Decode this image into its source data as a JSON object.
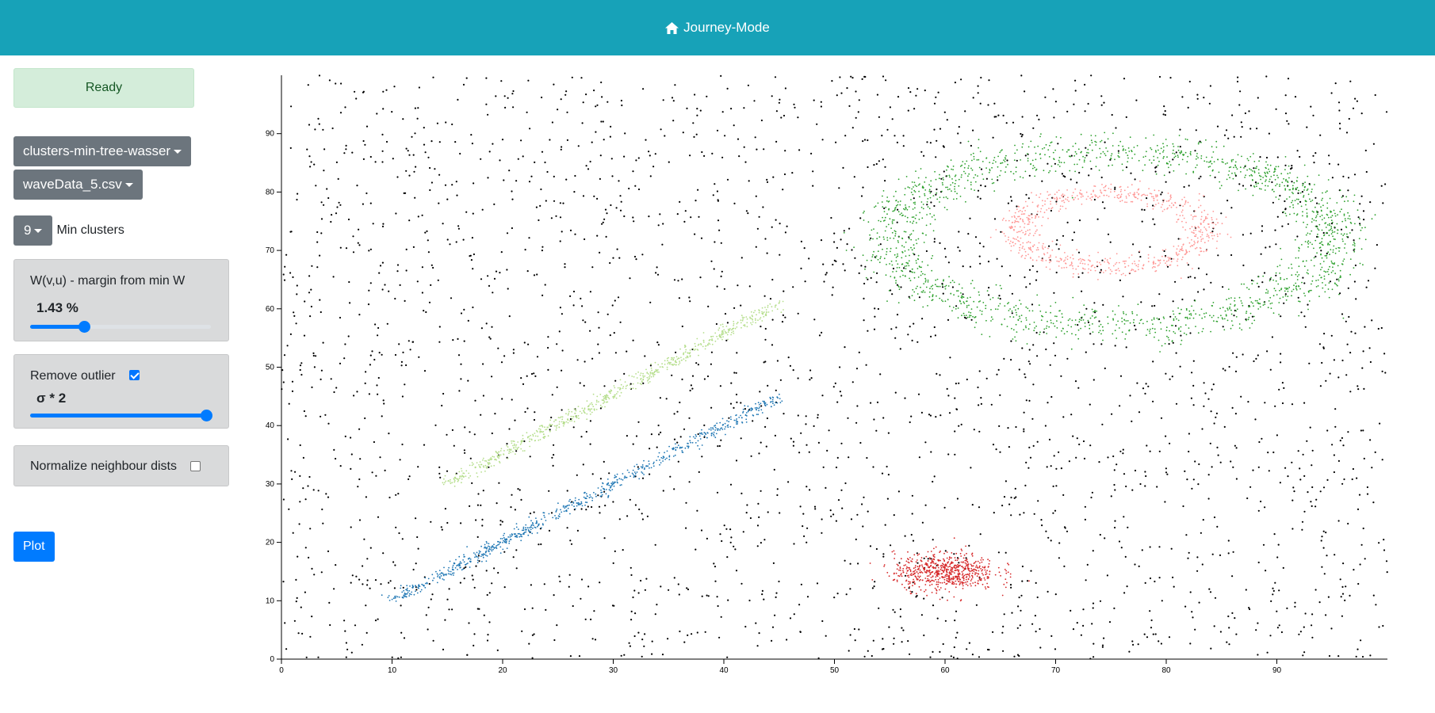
{
  "navbar": {
    "title": "Journey-Mode",
    "icon": "home-icon"
  },
  "sidebar": {
    "status": "Ready",
    "algorithm": "clusters-min-tree-wasser",
    "file": "waveData_5.csv",
    "min_clusters_value": "9",
    "min_clusters_label": "Min clusters",
    "margin": {
      "title": "W(v,u) - margin from min W",
      "value": "1.43 %",
      "level": 0.3
    },
    "outlier": {
      "title": "Remove outlier",
      "checked": true,
      "value": "σ * 2",
      "level": 1.0
    },
    "normalize": {
      "title": "Normalize neighbour dists",
      "checked": false
    },
    "plot_label": "Plot"
  },
  "colors": {
    "navbar": "#17a2b8",
    "status_bg": "#d4edda",
    "accent": "#007bff",
    "noise": "#000000",
    "cluster_blue": "#1f77b4",
    "cluster_lightgreen": "#b5de8c",
    "cluster_green": "#2ca02c",
    "cluster_pink": "#ff9896",
    "cluster_red": "#d62728"
  },
  "chart_data": {
    "type": "scatter",
    "xlim": [
      0,
      100
    ],
    "ylim": [
      0,
      100
    ],
    "x_ticks": [
      0,
      10,
      20,
      30,
      40,
      50,
      60,
      70,
      80,
      90
    ],
    "y_ticks": [
      0,
      10,
      20,
      30,
      40,
      50,
      60,
      70,
      80,
      90
    ],
    "noise": {
      "color": "#000000",
      "count": 2600
    },
    "clusters": [
      {
        "shape": "line",
        "from": [
          10,
          10
        ],
        "to": [
          45,
          45
        ],
        "spread": 0.9,
        "count": 700,
        "color": "#1f77b4"
      },
      {
        "shape": "line",
        "from": [
          15,
          30
        ],
        "to": [
          45,
          61
        ],
        "spread": 0.9,
        "count": 650,
        "color": "#b5de8c"
      },
      {
        "shape": "ring",
        "center": [
          75,
          72
        ],
        "rx": 20,
        "ry": 15,
        "width": 1.6,
        "count": 1700,
        "color": "#2ca02c"
      },
      {
        "shape": "ring",
        "center": [
          75,
          73.5
        ],
        "rx": 8.5,
        "ry": 6.3,
        "width": 0.9,
        "count": 700,
        "color": "#ff9896"
      },
      {
        "shape": "blob",
        "center": [
          60,
          15
        ],
        "sx": 2.3,
        "sy": 1.6,
        "count": 650,
        "color": "#d62728"
      }
    ]
  }
}
